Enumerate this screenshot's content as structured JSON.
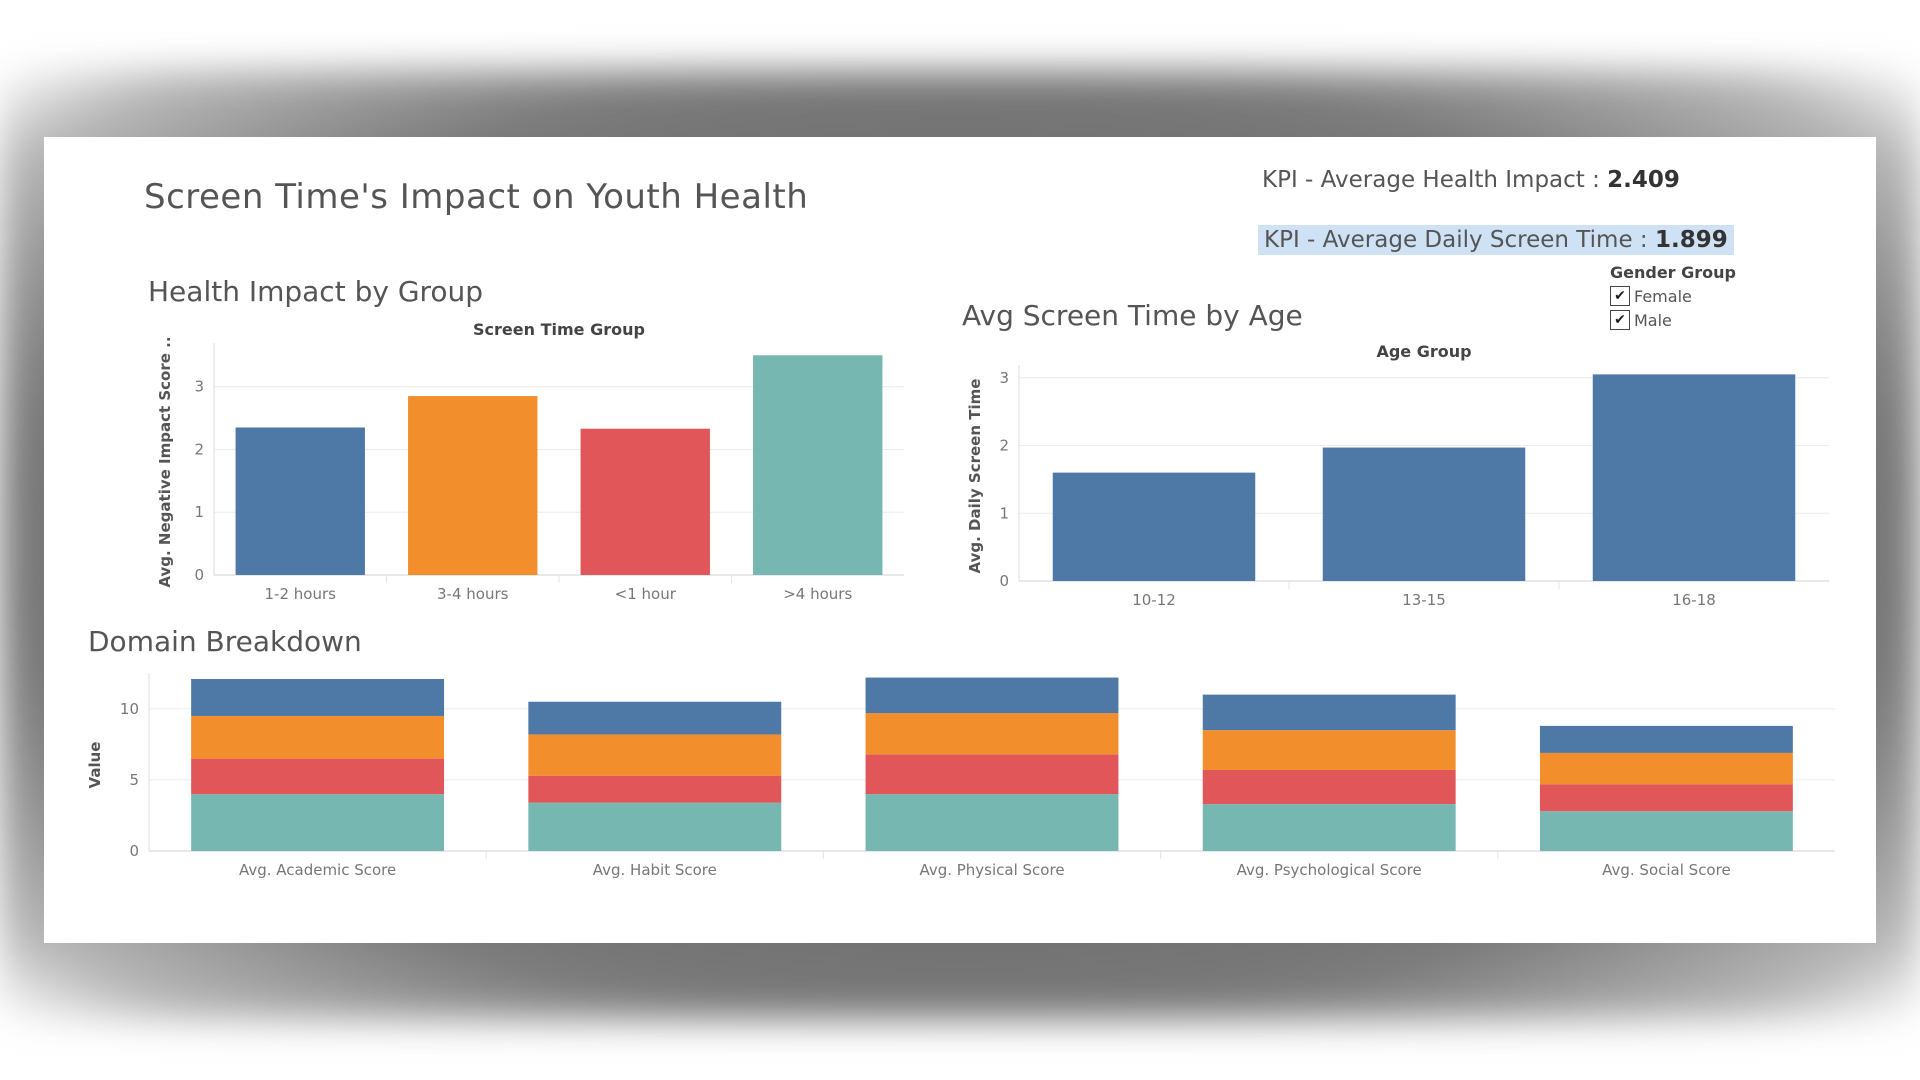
{
  "dashboard": {
    "title": "Screen Time's Impact on Youth Health",
    "kpi_health_label": "KPI - Average Health Impact : ",
    "kpi_health_value": "2.409",
    "kpi_screen_label": "KPI - Average Daily Screen Time : ",
    "kpi_screen_value": "1.899",
    "highlight_color": "#cfe2f5"
  },
  "legend": {
    "title": "Gender Group",
    "items": [
      {
        "label": "Female",
        "checked": true,
        "icon": "checkbox-checked-icon"
      },
      {
        "label": "Male",
        "checked": true,
        "icon": "checkbox-checked-icon"
      }
    ]
  },
  "chart_data": [
    {
      "id": "health-impact",
      "type": "bar",
      "title": "Health Impact by Group",
      "header": "Screen Time Group",
      "ylabel": "Avg. Negative Impact Score ..",
      "categories": [
        "1-2 hours",
        "3-4 hours",
        "<1 hour",
        ">4 hours"
      ],
      "values": [
        2.35,
        2.85,
        2.33,
        3.5
      ],
      "colors": [
        "#4e79a7",
        "#f28e2b",
        "#e15759",
        "#76b7b2"
      ],
      "yticks": [
        0,
        1,
        2,
        3
      ],
      "ylim": [
        0,
        3.6
      ]
    },
    {
      "id": "screen-time-age",
      "type": "bar",
      "title": "Avg Screen Time by Age",
      "header": "Age Group",
      "ylabel": "Avg. Daily Screen Time",
      "categories": [
        "10-12",
        "13-15",
        "16-18"
      ],
      "values": [
        1.6,
        1.97,
        3.05
      ],
      "colors": [
        "#4e79a7",
        "#4e79a7",
        "#4e79a7"
      ],
      "yticks": [
        0,
        1,
        2,
        3
      ],
      "ylim": [
        0,
        3.1
      ]
    },
    {
      "id": "domain-breakdown",
      "type": "bar",
      "stacked": true,
      "title": "Domain Breakdown",
      "ylabel": "Value",
      "categories": [
        "Avg. Academic Score",
        "Avg. Habit Score",
        "Avg. Physical Score",
        "Avg. Psychological Score",
        "Avg. Social Score"
      ],
      "series": [
        {
          "values": [
            4.0,
            3.4,
            4.0,
            3.3,
            2.8
          ],
          "color": "#76b7b2"
        },
        {
          "values": [
            2.5,
            1.9,
            2.8,
            2.4,
            1.9
          ],
          "color": "#e15759"
        },
        {
          "values": [
            3.0,
            2.9,
            2.9,
            2.8,
            2.2
          ],
          "color": "#f28e2b"
        },
        {
          "values": [
            2.6,
            2.3,
            2.5,
            2.5,
            1.9
          ],
          "color": "#4e79a7"
        }
      ],
      "yticks": [
        0,
        5,
        10
      ],
      "ylim": [
        0,
        12.1
      ]
    }
  ]
}
